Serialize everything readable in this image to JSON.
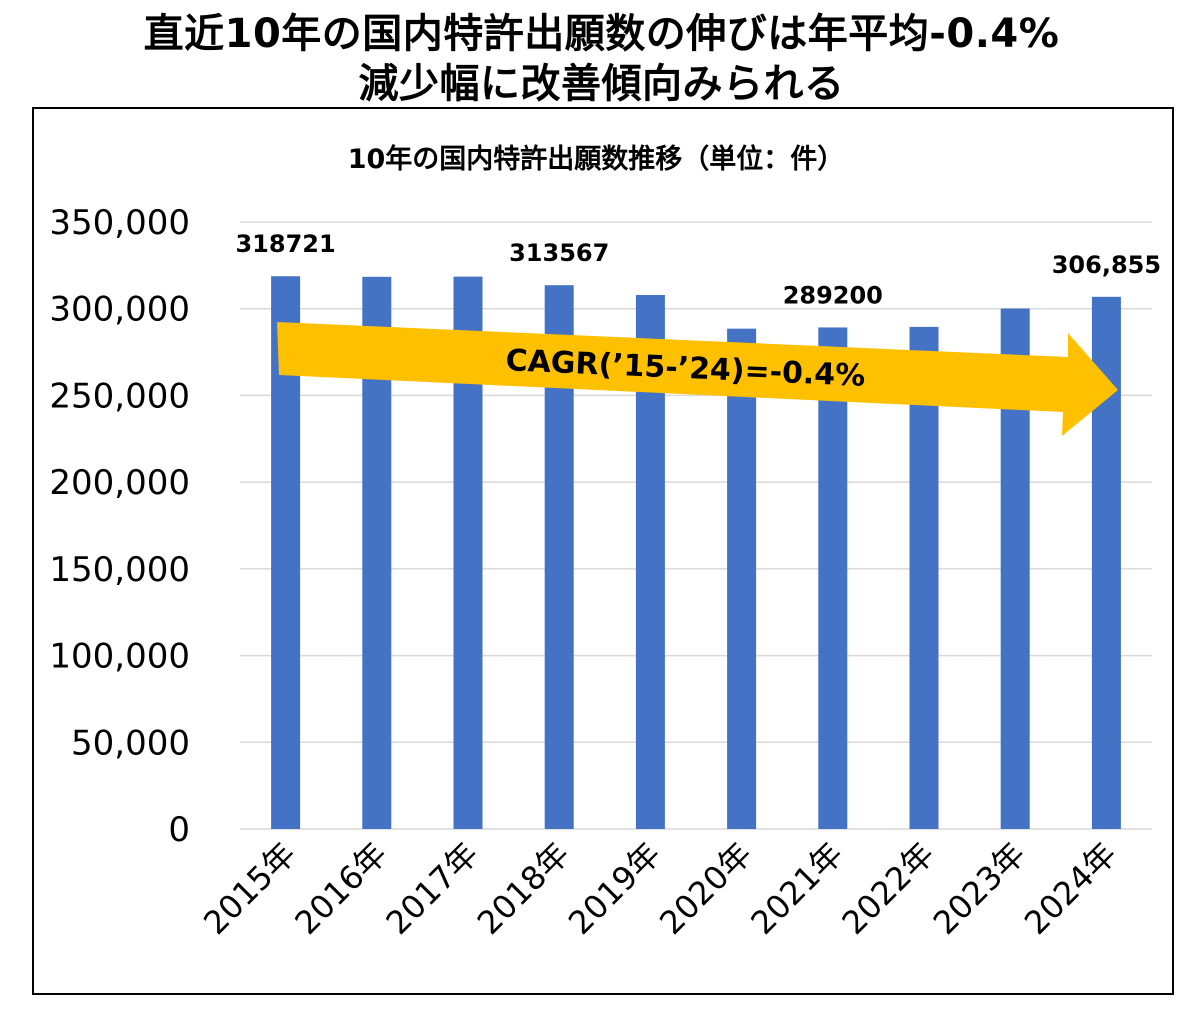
{
  "headline": {
    "line1": "直近10年の国内特許出願数の伸びは年平均-0.4%",
    "line2": "減少幅に改善傾向みられる"
  },
  "chart_data": {
    "type": "bar",
    "title": "10年の国内特許出願数推移（単位：件）",
    "categories": [
      "2015年",
      "2016年",
      "2017年",
      "2018年",
      "2019年",
      "2020年",
      "2021年",
      "2022年",
      "2023年",
      "2024年"
    ],
    "values": [
      318721,
      318400,
      318500,
      313567,
      307900,
      288500,
      289200,
      289500,
      300100,
      306855
    ],
    "ylim": [
      0,
      350000
    ],
    "yticks": [
      "0",
      "50,000",
      "100,000",
      "150,000",
      "200,000",
      "250,000",
      "300,000",
      "350,000"
    ],
    "ytick_values": [
      0,
      50000,
      100000,
      150000,
      200000,
      250000,
      300000,
      350000
    ],
    "data_labels": [
      {
        "index": 0,
        "text": "318721"
      },
      {
        "index": 3,
        "text": "313567"
      },
      {
        "index": 6,
        "text": "289200"
      },
      {
        "index": 9,
        "text": "306,855"
      }
    ],
    "annotation": "CAGR(’15-’24)=-0.4%",
    "grid": true,
    "colors": {
      "bar": "#4472C4",
      "arrow": "#FFC000",
      "grid": "#D9D9D9"
    }
  }
}
